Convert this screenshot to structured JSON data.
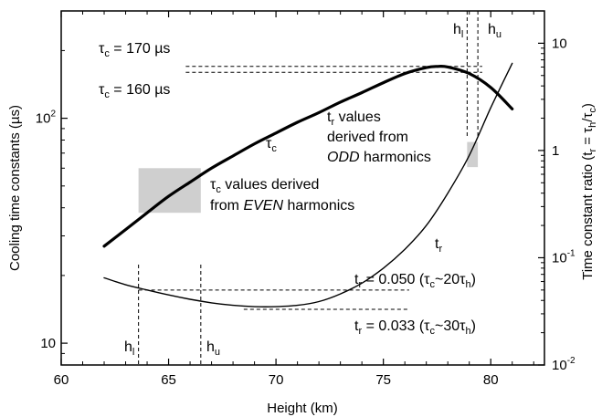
{
  "chart_data": {
    "type": "line",
    "title": "",
    "xlabel": "Height (km)",
    "ylabel_left": "Cooling time constants (µs)",
    "ylabel_right": "Time constant ratio (tᵣ = τₕ/τc)",
    "xlim": [
      60,
      82.5
    ],
    "ylim_left": [
      8,
      300
    ],
    "ylim_right": [
      0.01,
      20
    ],
    "yscale": "log",
    "grid": false,
    "x_ticks": [
      "60",
      "65",
      "70",
      "75",
      "80"
    ],
    "y_left_ticks": [
      "10",
      "10²"
    ],
    "y_right_ticks": [
      "10⁻²",
      "10⁻¹",
      "1",
      "10"
    ],
    "series": [
      {
        "name": "τc",
        "axis": "left",
        "x": [
          62.0,
          63.0,
          64.0,
          65.0,
          66.0,
          67.0,
          68.0,
          69.0,
          70.0,
          71.0,
          72.0,
          73.0,
          74.0,
          75.0,
          76.0,
          77.0,
          77.5,
          78.0,
          79.0,
          80.0,
          81.0
        ],
        "values": [
          27,
          32,
          38,
          45,
          52,
          60,
          68,
          77,
          86,
          96,
          106,
          118,
          130,
          144,
          158,
          168,
          170,
          169,
          158,
          137,
          110
        ]
      },
      {
        "name": "tr",
        "axis": "right",
        "x": [
          62.0,
          63.0,
          64.0,
          65.0,
          66.0,
          67.0,
          68.0,
          69.0,
          70.0,
          71.0,
          72.0,
          73.0,
          74.0,
          75.0,
          76.0,
          77.0,
          78.0,
          79.0,
          80.0,
          81.0
        ],
        "values": [
          0.065,
          0.056,
          0.05,
          0.045,
          0.041,
          0.038,
          0.036,
          0.035,
          0.035,
          0.036,
          0.039,
          0.046,
          0.058,
          0.08,
          0.12,
          0.2,
          0.4,
          0.9,
          2.5,
          6.5
        ]
      }
    ],
    "reference_lines": [
      {
        "label": "τc = 170 µs",
        "axis": "left",
        "value": 170,
        "x_range": [
          65.8,
          79.6
        ]
      },
      {
        "label": "τc = 160 µs",
        "axis": "left",
        "value": 160,
        "x_range": [
          65.8,
          79.6
        ]
      },
      {
        "label": "tr = 0.050 (τc~20τh)",
        "axis": "right",
        "value": 0.05,
        "x_range": [
          63.6,
          76.2
        ]
      },
      {
        "label": "tr = 0.033 (τc~30τh)",
        "axis": "right",
        "value": 0.033,
        "x_range": [
          68.5,
          76.2
        ]
      }
    ],
    "vertical_markers": [
      {
        "label": "hl",
        "x": 63.6
      },
      {
        "label": "hu",
        "x": 66.5
      },
      {
        "label": "hl",
        "x": 78.9
      },
      {
        "label": "hu",
        "x": 79.4
      }
    ],
    "shaded_regions": [
      {
        "x_range": [
          63.6,
          66.5
        ],
        "y_axis": "left",
        "y_range": [
          38,
          60
        ]
      },
      {
        "x_range": [
          78.9,
          79.4
        ],
        "y_axis": "right",
        "y_range": [
          0.7,
          1.2
        ]
      }
    ],
    "annotations": {
      "tc_eq_170": {
        "pre": "τ",
        "sub": "c",
        "post": " = 170 µs"
      },
      "tc_eq_160": {
        "pre": "τ",
        "sub": "c",
        "post": " = 160 µs"
      },
      "tc_curve_label": {
        "pre": "τ",
        "sub": "c"
      },
      "tr_curve_label": {
        "pre": "t",
        "sub": "r"
      },
      "tr_values_line1": {
        "pre": "t",
        "sub": "r",
        "post": " values"
      },
      "tr_values_line2": "derived from",
      "tr_values_line3_em": "ODD",
      "tr_values_line3_rest": " harmonics",
      "tc_values_line1": {
        "pre": "τ",
        "sub": "c",
        "post": " values derived"
      },
      "tc_values_line2_pre": "from ",
      "tc_values_line2_em": "EVEN",
      "tc_values_line2_rest": " harmonics",
      "tr_050": {
        "pre": "t",
        "sub": "r",
        "mid": " = 0.050 (τ",
        "sub2": "c",
        "mid2": "~20τ",
        "sub3": "h",
        "post": ")"
      },
      "tr_033": {
        "pre": "t",
        "sub": "r",
        "mid": " = 0.033 (τ",
        "sub2": "c",
        "mid2": "~30τ",
        "sub3": "h",
        "post": ")"
      },
      "hl_left": {
        "pre": "h",
        "sub": "l"
      },
      "hu_left": {
        "pre": "h",
        "sub": "u"
      },
      "hl_right": {
        "pre": "h",
        "sub": "l"
      },
      "hu_right": {
        "pre": "h",
        "sub": "u"
      }
    },
    "colors": {
      "curves": "#000000",
      "shade": "#cfcfcf"
    }
  }
}
